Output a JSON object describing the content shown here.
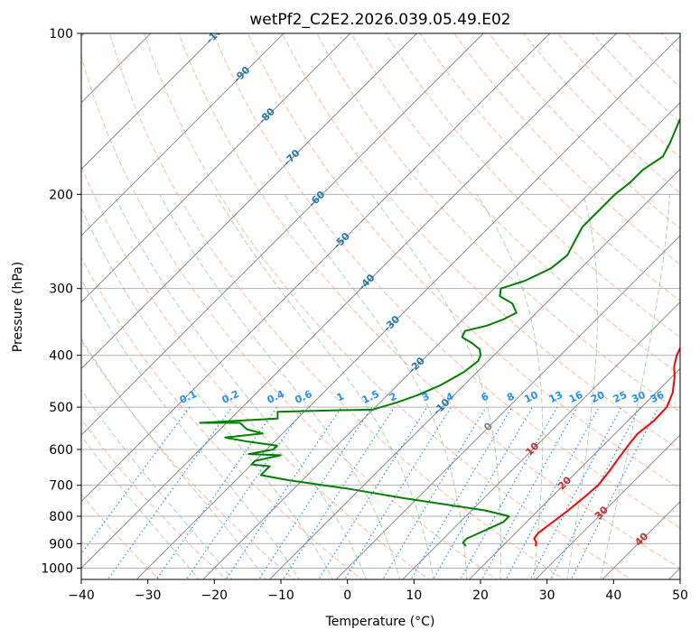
{
  "chart_data": {
    "type": "skew-t",
    "title": "wetPf2_C2E2.2026.039.05.49.E02",
    "xlabel": "Temperature (°C)",
    "ylabel": "Pressure (hPa)",
    "xlim": [
      -40,
      50
    ],
    "ylim": [
      1050,
      100
    ],
    "x_ticks": [
      "−40",
      "−30",
      "−20",
      "−10",
      "0",
      "10",
      "20",
      "30",
      "40",
      "50"
    ],
    "x_tick_values": [
      -40,
      -30,
      -20,
      -10,
      0,
      10,
      20,
      30,
      40,
      50
    ],
    "y_ticks": [
      "100",
      "200",
      "300",
      "400",
      "500",
      "600",
      "700",
      "800",
      "900",
      "1000"
    ],
    "y_tick_values": [
      100,
      200,
      300,
      400,
      500,
      600,
      700,
      800,
      900,
      1000
    ],
    "grid": true,
    "colors": {
      "temperature": "#ff0000",
      "dewpoint": "#008000",
      "isotherm": "#808080",
      "dry_adiabat": "#ffa07a",
      "moist_adiabat": "#90c090",
      "mixing_ratio": "#1e90ff",
      "isotherm_label_upper": "#1f77b4",
      "isotherm_label_lower": "#d62728",
      "isotherm_label_zero": "#808080",
      "mixing_label": "#1e90ff"
    },
    "series": [
      {
        "name": "temperature",
        "points": [
          [
            25,
            910
          ],
          [
            24.5,
            895
          ],
          [
            23.6,
            880
          ],
          [
            23.4,
            860
          ],
          [
            23.8,
            830
          ],
          [
            24.5,
            780
          ],
          [
            24.9,
            740
          ],
          [
            25.2,
            700
          ],
          [
            24.8,
            660
          ],
          [
            24.2,
            620
          ],
          [
            23.6,
            580
          ],
          [
            23.4,
            560
          ],
          [
            23.9,
            530
          ],
          [
            23.8,
            500
          ],
          [
            22.5,
            470
          ],
          [
            20.5,
            440
          ],
          [
            18.8,
            420
          ],
          [
            17.5,
            400
          ],
          [
            16.3,
            375
          ],
          [
            13.8,
            350
          ],
          [
            11.5,
            330
          ],
          [
            9.5,
            310
          ],
          [
            6.5,
            280
          ],
          [
            2.5,
            250
          ],
          [
            -1.5,
            225
          ],
          [
            -5.5,
            200
          ],
          [
            -8,
            185
          ],
          [
            -11,
            165
          ],
          [
            -13,
            150
          ],
          [
            -15.5,
            135
          ],
          [
            -16.5,
            125
          ],
          [
            -17.5,
            116
          ],
          [
            -19.5,
            108
          ],
          [
            -21.5,
            100
          ]
        ]
      },
      {
        "name": "dewpoint",
        "points": [
          [
            14.5,
            910
          ],
          [
            13.5,
            895
          ],
          [
            13.5,
            880
          ],
          [
            14.5,
            860
          ],
          [
            15.5,
            840
          ],
          [
            16.5,
            820
          ],
          [
            16.5,
            800
          ],
          [
            12,
            780
          ],
          [
            5,
            760
          ],
          [
            -2,
            740
          ],
          [
            -12,
            710
          ],
          [
            -22,
            685
          ],
          [
            -27,
            670
          ],
          [
            -27,
            645
          ],
          [
            -30,
            640
          ],
          [
            -30,
            630
          ],
          [
            -27,
            615
          ],
          [
            -32,
            612
          ],
          [
            -29,
            600
          ],
          [
            -29,
            590
          ],
          [
            -34,
            580
          ],
          [
            -38,
            570
          ],
          [
            -33,
            560
          ],
          [
            -36,
            550
          ],
          [
            -38,
            535
          ],
          [
            -44,
            535
          ],
          [
            -33,
            525
          ],
          [
            -34,
            510
          ],
          [
            -20,
            505
          ],
          [
            -17.5,
            490
          ],
          [
            -15.5,
            475
          ],
          [
            -13.5,
            455
          ],
          [
            -12,
            430
          ],
          [
            -11.5,
            410
          ],
          [
            -12,
            400
          ],
          [
            -13,
            390
          ],
          [
            -15,
            380
          ],
          [
            -17.5,
            370
          ],
          [
            -18,
            360
          ],
          [
            -15.5,
            352
          ],
          [
            -14,
            343
          ],
          [
            -13,
            333
          ],
          [
            -15,
            320
          ],
          [
            -18,
            310
          ],
          [
            -19,
            300
          ],
          [
            -16.5,
            290
          ],
          [
            -14.5,
            275
          ],
          [
            -14,
            260
          ],
          [
            -15,
            245
          ],
          [
            -16,
            230
          ],
          [
            -16,
            215
          ],
          [
            -16,
            200
          ],
          [
            -15.5,
            190
          ],
          [
            -15.5,
            180
          ],
          [
            -14.5,
            170
          ],
          [
            -15.5,
            160
          ],
          [
            -17.5,
            145
          ],
          [
            -19,
            130
          ],
          [
            -20.5,
            120
          ],
          [
            -23,
            110
          ],
          [
            -25,
            100
          ]
        ]
      }
    ],
    "isotherm_labels": [
      "-100",
      "-90",
      "-80",
      "-70",
      "-60",
      "-50",
      "-40",
      "-30",
      "-20",
      "-10",
      "0",
      "10",
      "20",
      "30",
      "40"
    ],
    "isotherm_label_values": [
      -100,
      -90,
      -80,
      -70,
      -60,
      -50,
      -40,
      -30,
      -20,
      -10,
      0,
      10,
      20,
      30,
      40
    ],
    "mixing_ratio_labels": [
      "0.1",
      "0.2",
      "0.4",
      "0.6",
      "1",
      "1.5",
      "2",
      "3",
      "4",
      "6",
      "8",
      "10",
      "13",
      "16",
      "20",
      "25",
      "30",
      "36"
    ],
    "mixing_ratio_values": [
      0.1,
      0.2,
      0.4,
      0.6,
      1,
      1.5,
      2,
      3,
      4,
      6,
      8,
      10,
      13,
      16,
      20,
      25,
      30,
      36
    ]
  }
}
